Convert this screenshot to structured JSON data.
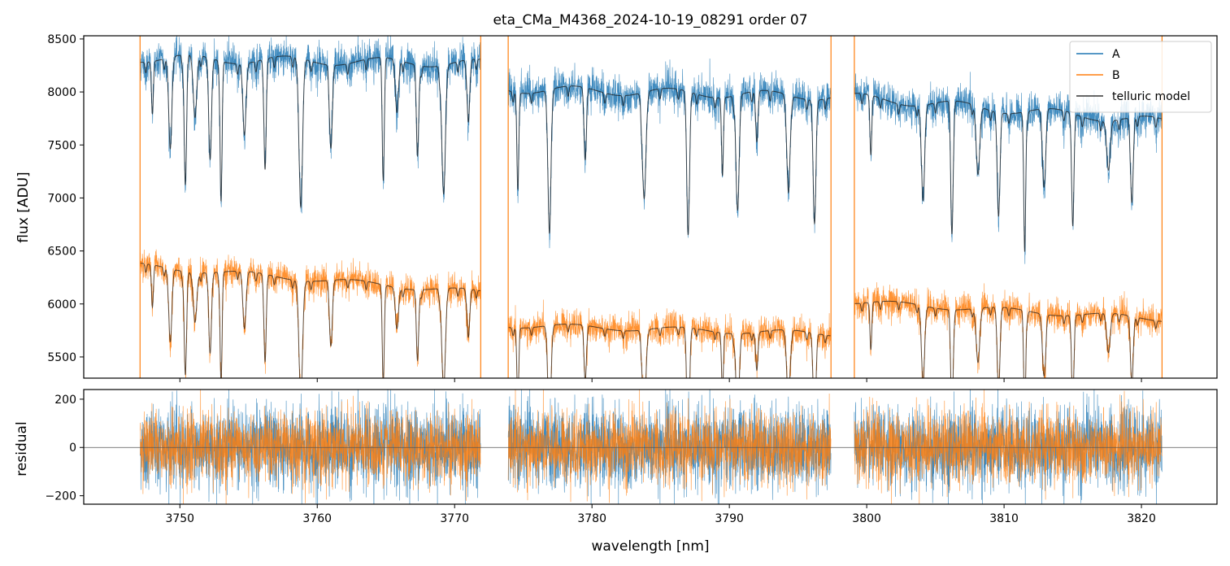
{
  "title": "eta_CMa_M4368_2024-10-19_08291  order 07",
  "colors": {
    "A": "#1f77b4",
    "B": "#ff7f0e",
    "model": "#1a1a1a",
    "axis": "#000000",
    "zero_line": "#555555"
  },
  "chart_data": [
    {
      "type": "line",
      "title": "eta_CMa_M4368_2024-10-19_08291  order 07",
      "xlabel": "",
      "ylabel": "flux [ADU]",
      "xlim": [
        3743.0,
        3825.5
      ],
      "ylim": [
        5300,
        8530
      ],
      "yticks": [
        5500,
        6000,
        6500,
        7000,
        7500,
        8000,
        8500
      ],
      "ytick_labels": [
        "5500",
        "6000",
        "6500",
        "7000",
        "7500",
        "8000",
        "8500"
      ],
      "xticks": [
        3750,
        3760,
        3770,
        3780,
        3790,
        3800,
        3810,
        3820
      ],
      "show_xtick_labels": false,
      "legend": {
        "position": "top-right",
        "entries": [
          "A",
          "B",
          "telluric model"
        ]
      },
      "segments": [
        {
          "x_range": [
            3747.1,
            3771.9
          ],
          "A_level": [
            8320,
            8270
          ],
          "B_level": [
            6360,
            6110
          ]
        },
        {
          "x_range": [
            3773.9,
            3797.4
          ],
          "A_level": [
            8030,
            7960
          ],
          "B_level": [
            5800,
            5720
          ]
        },
        {
          "x_range": [
            3799.1,
            3821.5
          ],
          "A_level": [
            7950,
            7720
          ],
          "B_level": [
            6020,
            5860
          ]
        }
      ],
      "absorption_lines_nm": [
        3748.0,
        3749.3,
        3750.4,
        3751.1,
        3752.2,
        3753.0,
        3754.7,
        3756.2,
        3758.8,
        3761.0,
        3764.8,
        3765.8,
        3767.3,
        3769.2,
        3771.0,
        3774.6,
        3776.9,
        3779.5,
        3783.8,
        3787.0,
        3789.5,
        3790.6,
        3792.0,
        3794.3,
        3796.2,
        3800.3,
        3804.1,
        3806.2,
        3808.1,
        3809.6,
        3811.5,
        3812.9,
        3815.0,
        3817.6,
        3819.3
      ],
      "series": [
        {
          "name": "A",
          "color": "#1f77b4"
        },
        {
          "name": "B",
          "color": "#ff7f0e"
        },
        {
          "name": "telluric model",
          "color": "#1a1a1a"
        }
      ],
      "vertical_lines_x": [
        3747.1,
        3771.9,
        3773.9,
        3797.4,
        3799.1,
        3821.5
      ]
    },
    {
      "type": "line",
      "xlabel": "wavelength [nm]",
      "ylabel": "residual",
      "xlim": [
        3743.0,
        3825.5
      ],
      "ylim": [
        -235,
        240
      ],
      "yticks": [
        -200,
        0,
        200
      ],
      "ytick_labels": [
        "−200",
        "0",
        "200"
      ],
      "xticks": [
        3750,
        3760,
        3770,
        3780,
        3790,
        3800,
        3810,
        3820
      ],
      "xtick_labels": [
        "3750",
        "3760",
        "3770",
        "3780",
        "3790",
        "3800",
        "3810",
        "3820"
      ],
      "zero_line": 0,
      "noise_sigma": 75,
      "series": [
        {
          "name": "A",
          "color": "#1f77b4"
        },
        {
          "name": "B",
          "color": "#ff7f0e"
        }
      ]
    }
  ]
}
